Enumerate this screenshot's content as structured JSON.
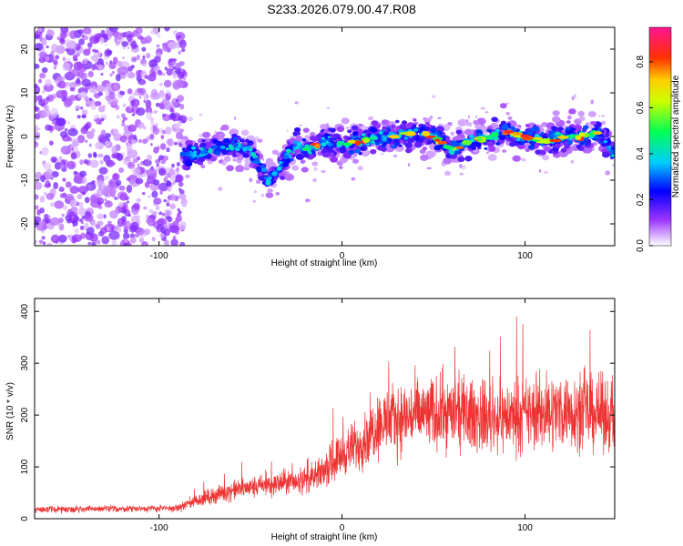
{
  "title": "S233.2026.079.00.47.R08",
  "chart_data": [
    {
      "type": "heatmap",
      "xlabel": "Height of straight line (km)",
      "ylabel": "Frequency (Hz)",
      "xlim": [
        -168,
        149
      ],
      "ylim": [
        -25,
        25
      ],
      "xticks": [
        -100,
        0,
        100
      ],
      "yticks": [
        -20,
        -10,
        0,
        10,
        20
      ],
      "colorbar": {
        "label": "Normalized spectral amplitude",
        "range": [
          0,
          0.95
        ],
        "ticks": [
          0.0,
          0.2,
          0.4,
          0.6,
          0.8
        ]
      },
      "ridge": {
        "x": [
          -85,
          -70,
          -60,
          -50,
          -40,
          -32,
          -25,
          -18,
          -10,
          0,
          10,
          20,
          30,
          40,
          50,
          60,
          70,
          80,
          90,
          100,
          110,
          120,
          130,
          140,
          149
        ],
        "frequency": [
          -4,
          -3,
          -2,
          -3,
          -10,
          -6,
          -2,
          -3,
          -1,
          -2,
          -1,
          0,
          0,
          1,
          0,
          -3,
          -1,
          0,
          1,
          0,
          -1,
          0,
          0,
          1,
          -4
        ]
      }
    },
    {
      "type": "line",
      "xlabel": "Height of straight line (km)",
      "ylabel": "SNR (10 * v/v)",
      "xlim": [
        -168,
        149
      ],
      "ylim": [
        0,
        425
      ],
      "xticks": [
        -100,
        0,
        100
      ],
      "yticks": [
        0,
        100,
        200,
        300,
        400
      ],
      "color": "#ee3333",
      "trend": {
        "x": [
          -168,
          -90,
          -80,
          -60,
          -40,
          -15,
          0,
          10,
          20,
          40,
          60,
          80,
          100,
          120,
          149
        ],
        "y": [
          18,
          20,
          35,
          55,
          65,
          78,
          125,
          145,
          185,
          200,
          205,
          195,
          200,
          210,
          200
        ]
      }
    }
  ]
}
